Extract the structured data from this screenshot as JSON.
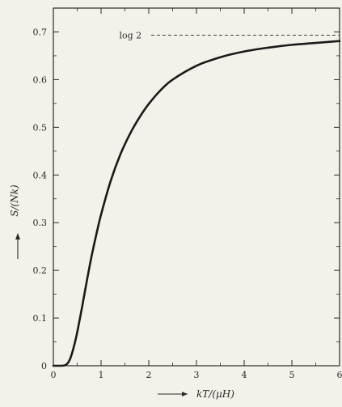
{
  "chart_data": {
    "type": "line",
    "xlabel": "kT/(μH)",
    "ylabel": "S/(Nk)",
    "xlim": [
      0,
      6
    ],
    "ylim": [
      0,
      0.75
    ],
    "x_ticks": [
      "0",
      "1",
      "2",
      "3",
      "4",
      "5",
      "6"
    ],
    "y_ticks": [
      "0",
      "0.1",
      "0.2",
      "0.3",
      "0.4",
      "0.5",
      "0.6",
      "0.7"
    ],
    "y_tick_values": [
      0,
      0.1,
      0.2,
      0.3,
      0.4,
      0.5,
      0.6,
      0.7
    ],
    "x_tick_values": [
      0,
      1,
      2,
      3,
      4,
      5,
      6
    ],
    "grid": false,
    "annotations": [
      {
        "text": "log 2",
        "y": 0.693,
        "style": "dashed asymptote"
      }
    ],
    "series": [
      {
        "x": [
          0,
          0.1,
          0.2,
          0.25,
          0.3,
          0.35,
          0.4,
          0.45,
          0.5,
          0.6,
          0.7,
          0.8,
          0.9,
          1.0,
          1.2,
          1.4,
          1.6,
          1.8,
          2.0,
          2.25,
          2.5,
          3.0,
          3.5,
          4.0,
          4.5,
          5.0,
          5.5,
          6.0
        ],
        "y": [
          0,
          0,
          0.0002,
          0.0013,
          0.0052,
          0.014,
          0.029,
          0.048,
          0.07,
          0.122,
          0.177,
          0.229,
          0.275,
          0.317,
          0.387,
          0.442,
          0.485,
          0.52,
          0.549,
          0.578,
          0.6,
          0.629,
          0.647,
          0.659,
          0.667,
          0.673,
          0.677,
          0.681
        ]
      }
    ]
  }
}
